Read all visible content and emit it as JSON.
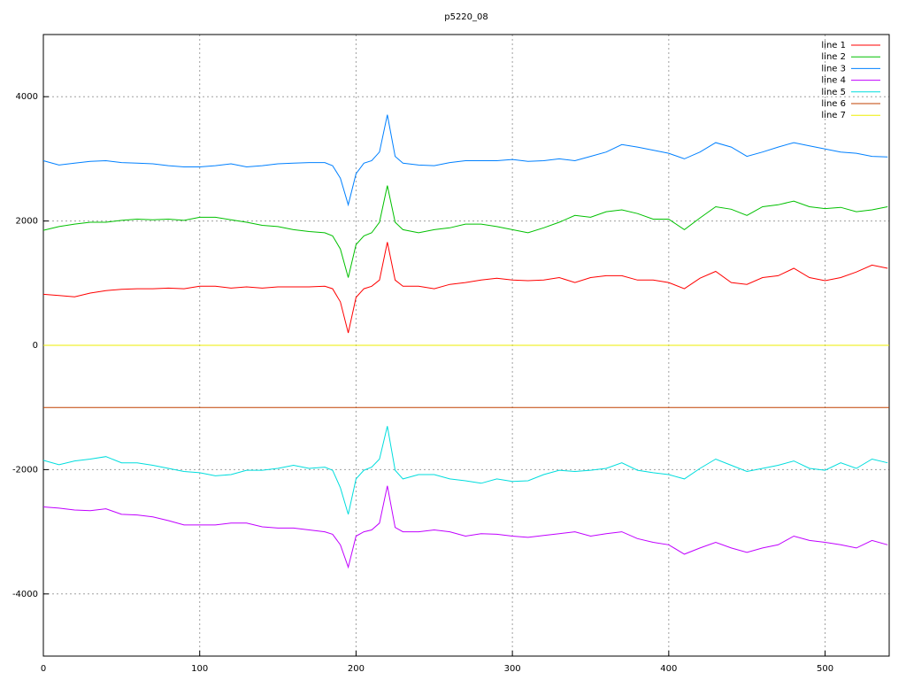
{
  "chart_data": {
    "type": "line",
    "title": "p5220_08",
    "x": [
      0,
      10,
      20,
      30,
      40,
      50,
      60,
      70,
      80,
      90,
      100,
      110,
      120,
      130,
      140,
      150,
      160,
      170,
      180,
      185,
      190,
      195,
      200,
      205,
      210,
      215,
      220,
      225,
      230,
      240,
      250,
      260,
      270,
      280,
      290,
      300,
      310,
      320,
      330,
      340,
      350,
      360,
      370,
      380,
      390,
      400,
      410,
      420,
      430,
      440,
      450,
      460,
      470,
      480,
      490,
      500,
      510,
      520,
      530,
      540
    ],
    "xlim": [
      0,
      541
    ],
    "xticks": [
      0,
      100,
      200,
      300,
      400,
      500
    ],
    "ylim": [
      -5000,
      5000
    ],
    "yticks": [
      -4000,
      -2000,
      0,
      2000,
      4000
    ],
    "grid": true,
    "legend": "top-right",
    "series": [
      {
        "name": "line 1",
        "color": "#ff0000",
        "values": [
          820,
          800,
          780,
          840,
          880,
          900,
          910,
          910,
          920,
          910,
          950,
          950,
          920,
          940,
          920,
          940,
          940,
          940,
          950,
          910,
          700,
          200,
          770,
          910,
          950,
          1050,
          1660,
          1050,
          950,
          950,
          910,
          980,
          1010,
          1050,
          1080,
          1050,
          1040,
          1050,
          1090,
          1010,
          1090,
          1120,
          1120,
          1050,
          1050,
          1010,
          910,
          1080,
          1190,
          1010,
          980,
          1090,
          1120,
          1240,
          1090,
          1040,
          1090,
          1180,
          1290,
          1240
        ]
      },
      {
        "name": "line 2",
        "color": "#00c000",
        "values": [
          1850,
          1910,
          1950,
          1980,
          1980,
          2010,
          2030,
          2020,
          2030,
          2010,
          2060,
          2060,
          2020,
          1980,
          1930,
          1910,
          1860,
          1830,
          1810,
          1760,
          1550,
          1090,
          1620,
          1760,
          1810,
          1980,
          2570,
          1980,
          1860,
          1810,
          1860,
          1890,
          1950,
          1950,
          1910,
          1860,
          1810,
          1890,
          1980,
          2090,
          2060,
          2150,
          2180,
          2120,
          2030,
          2030,
          1860,
          2050,
          2230,
          2190,
          2090,
          2230,
          2260,
          2320,
          2230,
          2200,
          2220,
          2150,
          2180,
          2230
        ]
      },
      {
        "name": "line 3",
        "color": "#0080ff",
        "values": [
          2970,
          2900,
          2930,
          2960,
          2970,
          2940,
          2930,
          2920,
          2890,
          2870,
          2870,
          2890,
          2920,
          2870,
          2890,
          2920,
          2930,
          2940,
          2940,
          2890,
          2690,
          2260,
          2760,
          2930,
          2970,
          3110,
          3710,
          3040,
          2930,
          2900,
          2890,
          2940,
          2970,
          2970,
          2970,
          2990,
          2960,
          2970,
          3000,
          2970,
          3040,
          3110,
          3230,
          3190,
          3140,
          3090,
          3000,
          3110,
          3260,
          3190,
          3040,
          3110,
          3190,
          3260,
          3210,
          3160,
          3110,
          3090,
          3040,
          3030
        ]
      },
      {
        "name": "line 4",
        "color": "#c000ff",
        "values": [
          -2600,
          -2620,
          -2650,
          -2660,
          -2630,
          -2720,
          -2730,
          -2760,
          -2820,
          -2890,
          -2890,
          -2890,
          -2860,
          -2860,
          -2920,
          -2940,
          -2940,
          -2970,
          -3000,
          -3040,
          -3210,
          -3570,
          -3070,
          -3000,
          -2970,
          -2860,
          -2260,
          -2930,
          -3000,
          -3000,
          -2970,
          -3000,
          -3070,
          -3030,
          -3040,
          -3070,
          -3090,
          -3060,
          -3030,
          -3000,
          -3070,
          -3030,
          -3000,
          -3110,
          -3170,
          -3210,
          -3360,
          -3260,
          -3170,
          -3260,
          -3330,
          -3260,
          -3210,
          -3070,
          -3140,
          -3170,
          -3210,
          -3260,
          -3140,
          -3210
        ]
      },
      {
        "name": "line 5",
        "color": "#00dddd",
        "values": [
          -1850,
          -1920,
          -1860,
          -1830,
          -1790,
          -1890,
          -1890,
          -1930,
          -1980,
          -2030,
          -2050,
          -2100,
          -2080,
          -2010,
          -2010,
          -1980,
          -1930,
          -1980,
          -1960,
          -2010,
          -2290,
          -2720,
          -2150,
          -2010,
          -1960,
          -1830,
          -1300,
          -2010,
          -2150,
          -2080,
          -2080,
          -2150,
          -2180,
          -2220,
          -2150,
          -2190,
          -2180,
          -2080,
          -2010,
          -2030,
          -2010,
          -1980,
          -1890,
          -2010,
          -2050,
          -2080,
          -2150,
          -1980,
          -1830,
          -1930,
          -2030,
          -1980,
          -1930,
          -1860,
          -1980,
          -2010,
          -1890,
          -1980,
          -1830,
          -1890
        ]
      },
      {
        "name": "line 6",
        "color": "#c04000",
        "x": [
          0,
          541
        ],
        "values": [
          -1000,
          -1000
        ]
      },
      {
        "name": "line 7",
        "color": "#eeee00",
        "x": [
          0,
          541
        ],
        "values": [
          0,
          0
        ]
      }
    ]
  }
}
